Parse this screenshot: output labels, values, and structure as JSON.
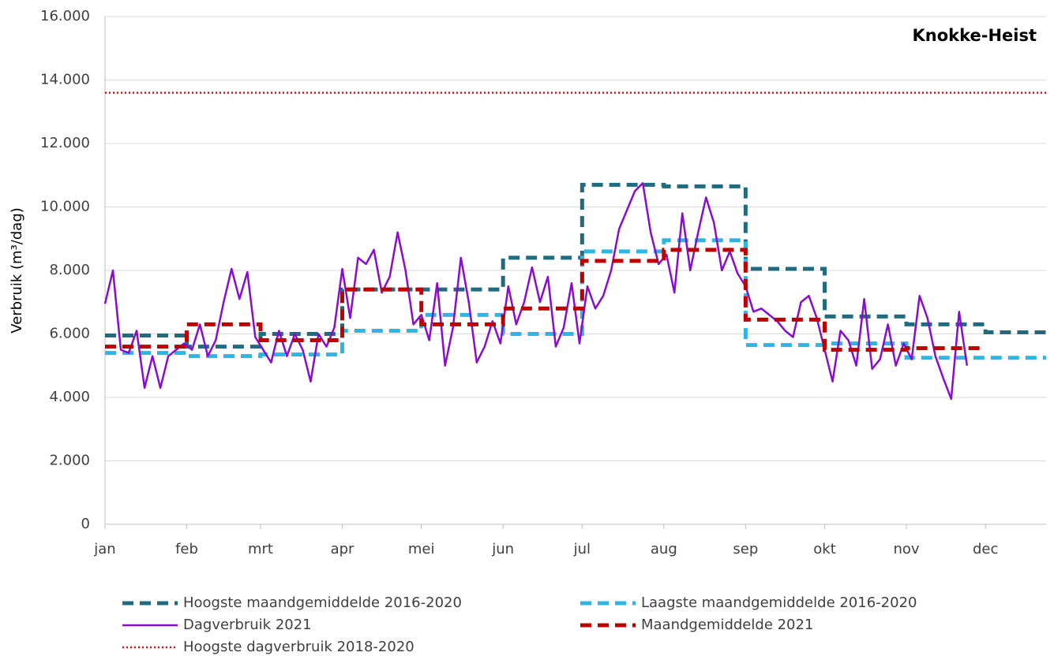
{
  "chart_data": {
    "type": "line",
    "title": "Knokke-Heist",
    "y_label": "Verbruik (m³/dag)",
    "xlim": [
      1,
      358
    ],
    "xticks": [
      {
        "value": 1,
        "label": "jan"
      },
      {
        "value": 32,
        "label": "feb"
      },
      {
        "value": 60,
        "label": "mrt"
      },
      {
        "value": 91,
        "label": "apr"
      },
      {
        "value": 121,
        "label": "mei"
      },
      {
        "value": 152,
        "label": "jun"
      },
      {
        "value": 182,
        "label": "jul"
      },
      {
        "value": 213,
        "label": "aug"
      },
      {
        "value": 244,
        "label": "sep"
      },
      {
        "value": 274,
        "label": "okt"
      },
      {
        "value": 305,
        "label": "nov"
      },
      {
        "value": 335,
        "label": "dec"
      }
    ],
    "ylim": [
      0,
      16000
    ],
    "yticks": [
      0,
      {
        "value": 2000,
        "label": "2.000"
      },
      {
        "value": 4000,
        "label": "4.000"
      },
      {
        "value": 6000,
        "label": "6.000"
      },
      {
        "value": 8000,
        "label": "8.000"
      },
      {
        "value": 10000,
        "label": "10.000"
      },
      {
        "value": 12000,
        "label": "12.000"
      },
      {
        "value": 14000,
        "label": "14.000"
      },
      {
        "value": 16000,
        "label": "16.000"
      }
    ],
    "grid": true,
    "series": [
      {
        "name": "Hoogste maandgemiddelde 2016-2020",
        "color": "#1f6b80",
        "style": "dashed",
        "step": "monthly",
        "values": [
          5950,
          5600,
          6000,
          7400,
          7400,
          8400,
          10700,
          10650,
          8050,
          6550,
          6300,
          6050
        ]
      },
      {
        "name": "Laagste maandgemiddelde 2016-2020",
        "color": "#2db6e3",
        "style": "dashed",
        "step": "monthly",
        "values": [
          5400,
          5300,
          5350,
          6100,
          6600,
          6000,
          8600,
          8950,
          5650,
          5700,
          5250,
          5250
        ]
      },
      {
        "name": "Dagverbruik 2021",
        "color": "#8a0ccf",
        "style": "solid",
        "x": [
          1,
          4,
          7,
          10,
          13,
          16,
          19,
          22,
          25,
          28,
          31,
          34,
          37,
          40,
          43,
          46,
          49,
          52,
          55,
          58,
          61,
          64,
          67,
          70,
          73,
          76,
          79,
          82,
          85,
          88,
          91,
          94,
          97,
          100,
          103,
          106,
          109,
          112,
          115,
          118,
          121,
          124,
          127,
          130,
          133,
          136,
          139,
          142,
          145,
          148,
          151,
          154,
          157,
          160,
          163,
          166,
          169,
          172,
          175,
          178,
          181,
          184,
          187,
          190,
          193,
          196,
          199,
          202,
          205,
          208,
          211,
          214,
          217,
          220,
          223,
          226,
          229,
          232,
          235,
          238,
          241,
          244,
          247,
          250,
          253,
          256,
          259,
          262,
          265,
          268,
          271,
          274,
          277,
          280,
          283,
          286,
          289,
          292,
          295,
          298,
          301,
          304,
          307,
          310,
          313,
          316,
          319,
          322,
          325,
          328
        ],
        "values": [
          6950,
          8000,
          5500,
          5400,
          6100,
          4300,
          5300,
          4300,
          5300,
          5500,
          5700,
          5500,
          6300,
          5300,
          5800,
          7000,
          8050,
          7100,
          7950,
          5900,
          5500,
          5100,
          6100,
          5300,
          6000,
          5500,
          4500,
          6000,
          5600,
          6200,
          8050,
          6500,
          8400,
          8200,
          8650,
          7300,
          7800,
          9200,
          8000,
          6300,
          6600,
          5800,
          7600,
          5000,
          6200,
          8400,
          7000,
          5100,
          5600,
          6400,
          5700,
          7500,
          6300,
          7000,
          8100,
          7000,
          7800,
          5600,
          6200,
          7600,
          5700,
          7500,
          6800,
          7200,
          8000,
          9300,
          9900,
          10500,
          10750,
          9200,
          8200,
          8500,
          7300,
          9800,
          8000,
          9200,
          10300,
          9500,
          8000,
          8600,
          7900,
          7500,
          6700,
          6800,
          6600,
          6400,
          6100,
          5900,
          7000,
          7200,
          6500,
          5500,
          4500,
          6100,
          5800,
          5000,
          7100,
          4900,
          5200,
          6300,
          5000,
          5700,
          5200,
          7200,
          6500,
          5300,
          4600,
          3950,
          6700,
          5000
        ]
      },
      {
        "name": "Maandgemiddelde 2021",
        "color": "#c00000",
        "style": "dashed",
        "step": "monthly",
        "values": [
          5600,
          6300,
          5800,
          7400,
          6300,
          6800,
          8300,
          8650,
          6450,
          5500,
          5550
        ]
      },
      {
        "name": "Hoogste dagverbruik 2018-2020",
        "color": "#e01010",
        "style": "dotted",
        "step": "constant",
        "values": [
          13600
        ]
      }
    ]
  }
}
